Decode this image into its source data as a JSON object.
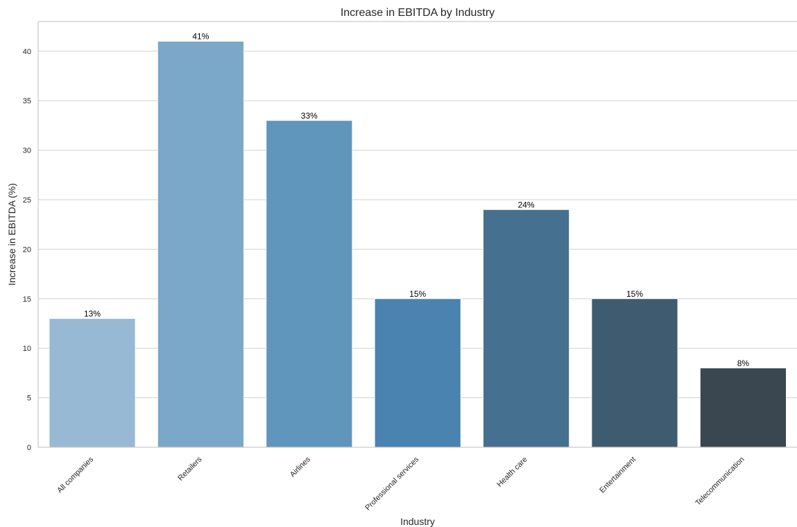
{
  "chart_data": {
    "type": "bar",
    "title": "Increase in EBITDA by Industry",
    "xlabel": "Industry",
    "ylabel": "Increase in EBITDA (%)",
    "categories": [
      "All companies",
      "Retailers",
      "Airlines",
      "Professional services",
      "Health care",
      "Entertainment",
      "Telecommunication"
    ],
    "values": [
      13,
      41,
      33,
      15,
      24,
      15,
      8
    ],
    "data_labels": [
      "13%",
      "41%",
      "33%",
      "15%",
      "24%",
      "15%",
      "8%"
    ],
    "colors": [
      "#98b9d4",
      "#7ba8c8",
      "#6096bc",
      "#4a83b0",
      "#45708f",
      "#3f5b70",
      "#3a4751"
    ],
    "ylim": [
      0,
      43
    ],
    "yticks": [
      0,
      5,
      10,
      15,
      20,
      25,
      30,
      35,
      40
    ],
    "grid": true,
    "grid_axis": "y"
  }
}
